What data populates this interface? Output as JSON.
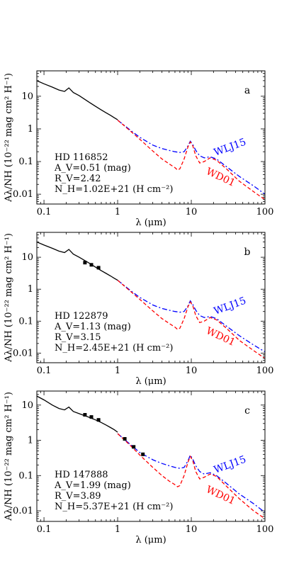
{
  "chart_data": [
    {
      "type": "line",
      "panel_label": "a",
      "xscale": "log",
      "yscale": "log",
      "xlim": [
        0.08,
        100
      ],
      "ylim": [
        0.005,
        60
      ],
      "xlabel": "λ (μm)",
      "ylabel": "Aλ/NH (10⁻²² mag cm² H⁻¹)",
      "xticks": [
        0.1,
        1,
        10,
        100
      ],
      "xtick_labels": [
        "0.1",
        "1",
        "10",
        "100"
      ],
      "yticks": [
        0.01,
        0.1,
        1,
        10
      ],
      "ytick_labels": [
        "0.01",
        "0.1",
        "1",
        "10"
      ],
      "star": "HD 116852",
      "annotations": [
        "A_V=0.51 (mag)",
        "R_V=2.42",
        "N_H=1.02E+21 (H cm⁻²)"
      ],
      "series": [
        {
          "name": "WLJ15",
          "color": "#0000ff",
          "style": "dashdot",
          "x": [
            1,
            1.5,
            2,
            3,
            4,
            5,
            6,
            7,
            8,
            9,
            9.7,
            10.5,
            11.5,
            13,
            15,
            18,
            22,
            30,
            45,
            70,
            100
          ],
          "y": [
            1.85,
            0.9,
            0.55,
            0.32,
            0.25,
            0.22,
            0.2,
            0.19,
            0.2,
            0.3,
            0.42,
            0.33,
            0.22,
            0.15,
            0.13,
            0.14,
            0.12,
            0.07,
            0.035,
            0.018,
            0.01
          ]
        },
        {
          "name": "WD01",
          "color": "#ff0000",
          "style": "dashed",
          "x": [
            1,
            1.5,
            2,
            3,
            4,
            5,
            6,
            6.5,
            7,
            8,
            9,
            9.7,
            10.5,
            11.5,
            13,
            15,
            18,
            22,
            30,
            45,
            70,
            100
          ],
          "y": [
            1.85,
            0.85,
            0.48,
            0.21,
            0.12,
            0.085,
            0.065,
            0.055,
            0.06,
            0.12,
            0.28,
            0.4,
            0.3,
            0.15,
            0.09,
            0.1,
            0.13,
            0.11,
            0.06,
            0.025,
            0.012,
            0.0068
          ]
        },
        {
          "name": "",
          "color": "#000000",
          "style": "solid",
          "x": [
            0.08,
            0.1,
            0.13,
            0.16,
            0.19,
            0.2175,
            0.25,
            0.3,
            0.4,
            0.5,
            0.6,
            0.7,
            0.8,
            0.9,
            1.0
          ],
          "y": [
            30,
            24,
            19,
            15.5,
            14,
            18,
            13,
            10.5,
            6.8,
            4.9,
            3.8,
            3.1,
            2.6,
            2.2,
            1.9
          ]
        }
      ],
      "points": {
        "x": [],
        "y": []
      }
    },
    {
      "type": "line",
      "panel_label": "b",
      "xscale": "log",
      "yscale": "log",
      "xlim": [
        0.08,
        100
      ],
      "ylim": [
        0.005,
        60
      ],
      "xlabel": "λ (μm)",
      "ylabel": "Aλ/NH (10⁻²² mag cm² H⁻¹)",
      "xticks": [
        0.1,
        1,
        10,
        100
      ],
      "xtick_labels": [
        "0.1",
        "1",
        "10",
        "100"
      ],
      "yticks": [
        0.01,
        0.1,
        1,
        10
      ],
      "ytick_labels": [
        "0.01",
        "0.1",
        "1",
        "10"
      ],
      "star": "HD 122879",
      "annotations": [
        "A_V=1.13 (mag)",
        "R_V=3.15",
        "N_H=2.45E+21 (H cm⁻²)"
      ],
      "series": [
        {
          "name": "WLJ15",
          "color": "#0000ff",
          "style": "dashdot",
          "x": [
            1,
            1.5,
            2,
            3,
            4,
            5,
            6,
            7,
            8,
            9,
            9.7,
            10.5,
            11.5,
            13,
            15,
            18,
            22,
            30,
            45,
            70,
            100
          ],
          "y": [
            1.9,
            0.9,
            0.55,
            0.32,
            0.25,
            0.22,
            0.2,
            0.19,
            0.2,
            0.3,
            0.43,
            0.33,
            0.22,
            0.15,
            0.13,
            0.14,
            0.12,
            0.07,
            0.035,
            0.018,
            0.011
          ]
        },
        {
          "name": "WD01",
          "color": "#ff0000",
          "style": "dashed",
          "x": [
            1,
            1.5,
            2,
            3,
            4,
            5,
            6,
            6.5,
            7,
            8,
            9,
            9.7,
            10.5,
            11.5,
            13,
            15,
            18,
            22,
            30,
            45,
            70,
            100
          ],
          "y": [
            1.9,
            0.85,
            0.48,
            0.21,
            0.12,
            0.085,
            0.065,
            0.055,
            0.06,
            0.12,
            0.28,
            0.4,
            0.3,
            0.15,
            0.09,
            0.1,
            0.13,
            0.11,
            0.06,
            0.025,
            0.012,
            0.0068
          ]
        },
        {
          "name": "",
          "color": "#000000",
          "style": "solid",
          "x": [
            0.08,
            0.1,
            0.13,
            0.16,
            0.19,
            0.2175,
            0.25,
            0.3,
            0.4,
            0.5,
            0.6,
            0.7,
            0.8,
            0.9,
            1.0
          ],
          "y": [
            30,
            24,
            19,
            15.5,
            14,
            17.5,
            12.5,
            10,
            6.8,
            4.9,
            3.8,
            3.1,
            2.6,
            2.2,
            1.9
          ]
        }
      ],
      "points": {
        "x": [
          0.36,
          0.44,
          0.55
        ],
        "y": [
          6.8,
          5.8,
          4.7
        ]
      }
    },
    {
      "type": "line",
      "panel_label": "c",
      "xscale": "log",
      "yscale": "log",
      "xlim": [
        0.08,
        100
      ],
      "ylim": [
        0.005,
        25
      ],
      "xlabel": "λ (μm)",
      "ylabel": "Aλ/NH (10⁻²² mag cm² H⁻¹)",
      "xticks": [
        0.1,
        1,
        10,
        100
      ],
      "xtick_labels": [
        "0.1",
        "1",
        "10",
        "100"
      ],
      "yticks": [
        0.01,
        0.1,
        1,
        10
      ],
      "ytick_labels": [
        "0.01",
        "0.1",
        "1",
        "10"
      ],
      "star": "HD 147888",
      "annotations": [
        "A_V=1.99 (mag)",
        "R_V=3.89",
        "N_H=5.37E+21 (H cm⁻²)"
      ],
      "series": [
        {
          "name": "WLJ15",
          "color": "#0000ff",
          "style": "dashdot",
          "x": [
            1,
            1.5,
            2,
            3,
            4,
            5,
            6,
            7,
            8,
            9,
            9.7,
            10.5,
            11.5,
            13,
            15,
            18,
            22,
            30,
            45,
            70,
            100
          ],
          "y": [
            1.55,
            0.75,
            0.45,
            0.28,
            0.22,
            0.19,
            0.17,
            0.16,
            0.17,
            0.26,
            0.38,
            0.29,
            0.19,
            0.13,
            0.11,
            0.12,
            0.1,
            0.06,
            0.03,
            0.016,
            0.009
          ]
        },
        {
          "name": "WD01",
          "color": "#ff0000",
          "style": "dashed",
          "x": [
            1,
            1.5,
            2,
            3,
            4,
            5,
            6,
            6.5,
            7,
            8,
            9,
            9.7,
            10.5,
            11.5,
            13,
            15,
            18,
            22,
            30,
            45,
            70,
            100
          ],
          "y": [
            1.55,
            0.7,
            0.38,
            0.17,
            0.1,
            0.07,
            0.055,
            0.048,
            0.052,
            0.1,
            0.24,
            0.35,
            0.26,
            0.13,
            0.08,
            0.09,
            0.11,
            0.095,
            0.05,
            0.022,
            0.01,
            0.006
          ]
        },
        {
          "name": "",
          "color": "#000000",
          "style": "solid",
          "x": [
            0.08,
            0.1,
            0.13,
            0.16,
            0.19,
            0.2175,
            0.25,
            0.3,
            0.4,
            0.5,
            0.6,
            0.7,
            0.8,
            0.9,
            1.0
          ],
          "y": [
            18,
            14,
            10,
            8,
            7.3,
            8.8,
            6.6,
            5.7,
            4.6,
            3.8,
            3.2,
            2.7,
            2.3,
            2.0,
            1.7
          ]
        }
      ],
      "points": {
        "x": [
          0.36,
          0.44,
          0.55,
          1.25,
          1.65,
          2.2
        ],
        "y": [
          5.3,
          4.6,
          3.8,
          1.1,
          0.65,
          0.4
        ]
      }
    }
  ]
}
